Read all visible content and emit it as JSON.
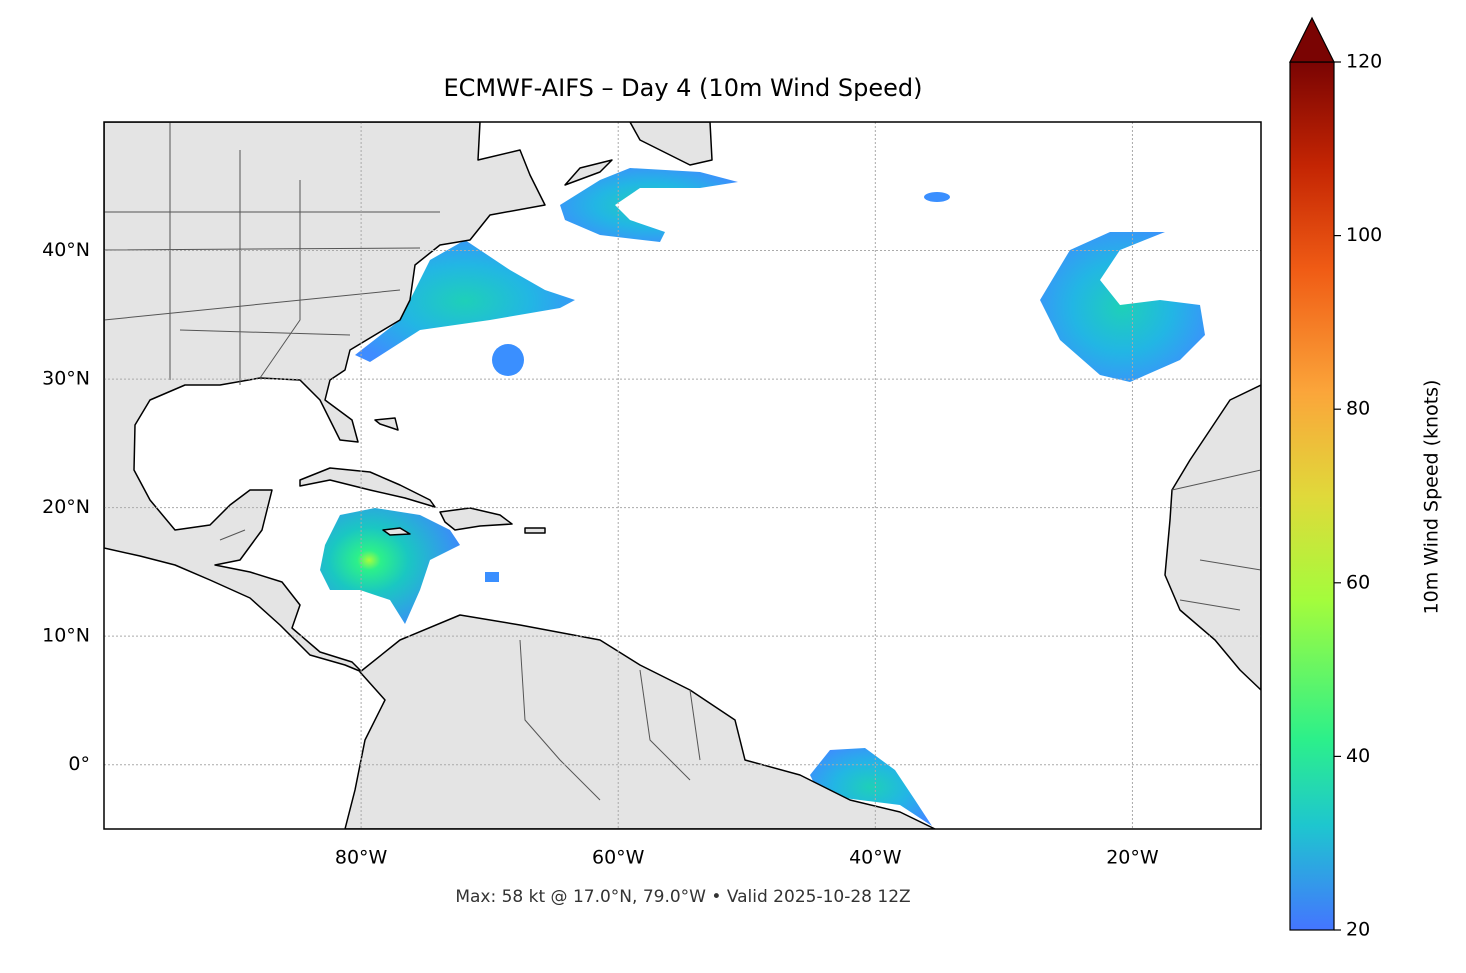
{
  "title": "ECMWF-AIFS – Day 4 (10m Wind Speed)",
  "map": {
    "xlim": [
      -100,
      -10
    ],
    "ylim": [
      -5,
      50
    ],
    "xticks": [
      {
        "value": -80,
        "label": "80°W"
      },
      {
        "value": -60,
        "label": "60°W"
      },
      {
        "value": -40,
        "label": "40°W"
      },
      {
        "value": -20,
        "label": "20°W"
      }
    ],
    "yticks": [
      {
        "value": 0,
        "label": "0°"
      },
      {
        "value": 10,
        "label": "10°N"
      },
      {
        "value": 20,
        "label": "20°N"
      },
      {
        "value": 30,
        "label": "30°N"
      },
      {
        "value": 40,
        "label": "40°N"
      }
    ],
    "grid": true
  },
  "colorbar": {
    "label": "10m Wind Speed (knots)",
    "lim": [
      20,
      120
    ],
    "ticks": [
      20,
      40,
      60,
      80,
      100,
      120
    ]
  },
  "footer": "Max: 58 kt @ 17.0°N, 79.0°W • Valid 2025-10-28 12Z"
}
